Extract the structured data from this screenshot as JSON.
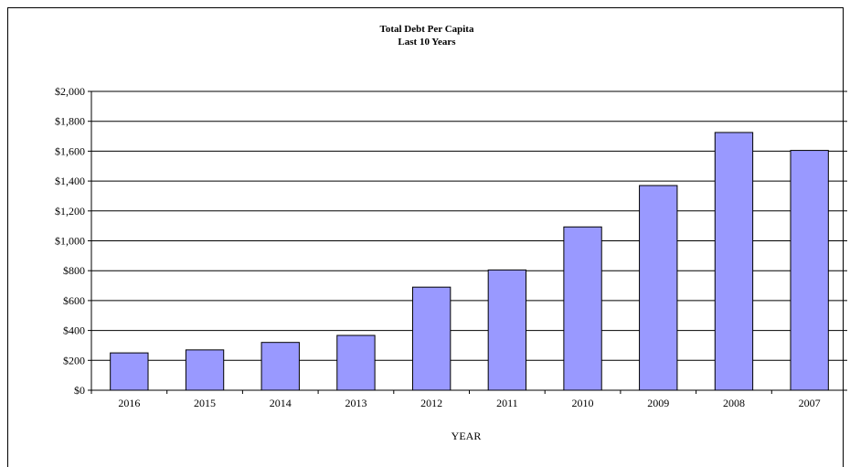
{
  "chart_data": {
    "type": "bar",
    "title": "Total Debt Per Capita",
    "subtitle": "Last 10 Years",
    "xlabel": "YEAR",
    "ylabel": "",
    "categories": [
      "2016",
      "2015",
      "2014",
      "2013",
      "2012",
      "2011",
      "2010",
      "2009",
      "2008",
      "2007"
    ],
    "values": [
      250,
      270,
      320,
      367,
      690,
      805,
      1093,
      1370,
      1725,
      1605
    ],
    "ylim": [
      0,
      2000
    ],
    "yticks": [
      0,
      200,
      400,
      600,
      800,
      1000,
      1200,
      1400,
      1600,
      1800,
      2000
    ],
    "ytick_labels": [
      "$0",
      "$200",
      "$400",
      "$600",
      "$800",
      "$1,000",
      "$1,200",
      "$1,400",
      "$1,600",
      "$1,800",
      "$2,000"
    ],
    "grid": true,
    "legend": "none",
    "bar_color": "#9999ff",
    "bar_edge_color": "#000000"
  }
}
